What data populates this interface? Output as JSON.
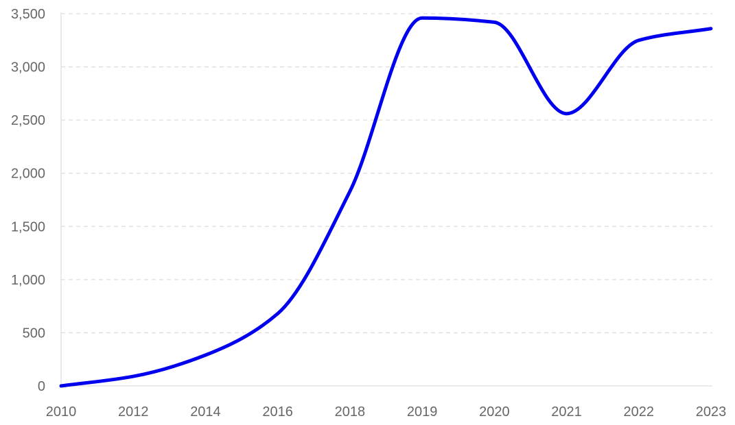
{
  "chart_data": {
    "type": "line",
    "title": "",
    "xlabel": "",
    "ylabel": "",
    "categories": [
      "2010",
      "2012",
      "2014",
      "2016",
      "2018",
      "2019",
      "2020",
      "2021",
      "2022",
      "2023"
    ],
    "series": [
      {
        "values": [
          0,
          90,
          290,
          680,
          1830,
          3460,
          3420,
          2560,
          3250,
          3360
        ],
        "color": "#0000ee"
      }
    ],
    "ylim": [
      0,
      3500
    ],
    "yticks": [
      0,
      500,
      1000,
      1500,
      2000,
      2500,
      3000,
      3500
    ],
    "ytick_labels": [
      "0",
      "500",
      "1,000",
      "1,500",
      "2,000",
      "2,500",
      "3,000",
      "3,500"
    ],
    "grid": {
      "horizontal": true,
      "vertical": false,
      "style": "dashed"
    },
    "legend": "none",
    "colors": {
      "grid": "#dddddd",
      "tick_text": "#666666",
      "series": "#0000ee"
    }
  }
}
